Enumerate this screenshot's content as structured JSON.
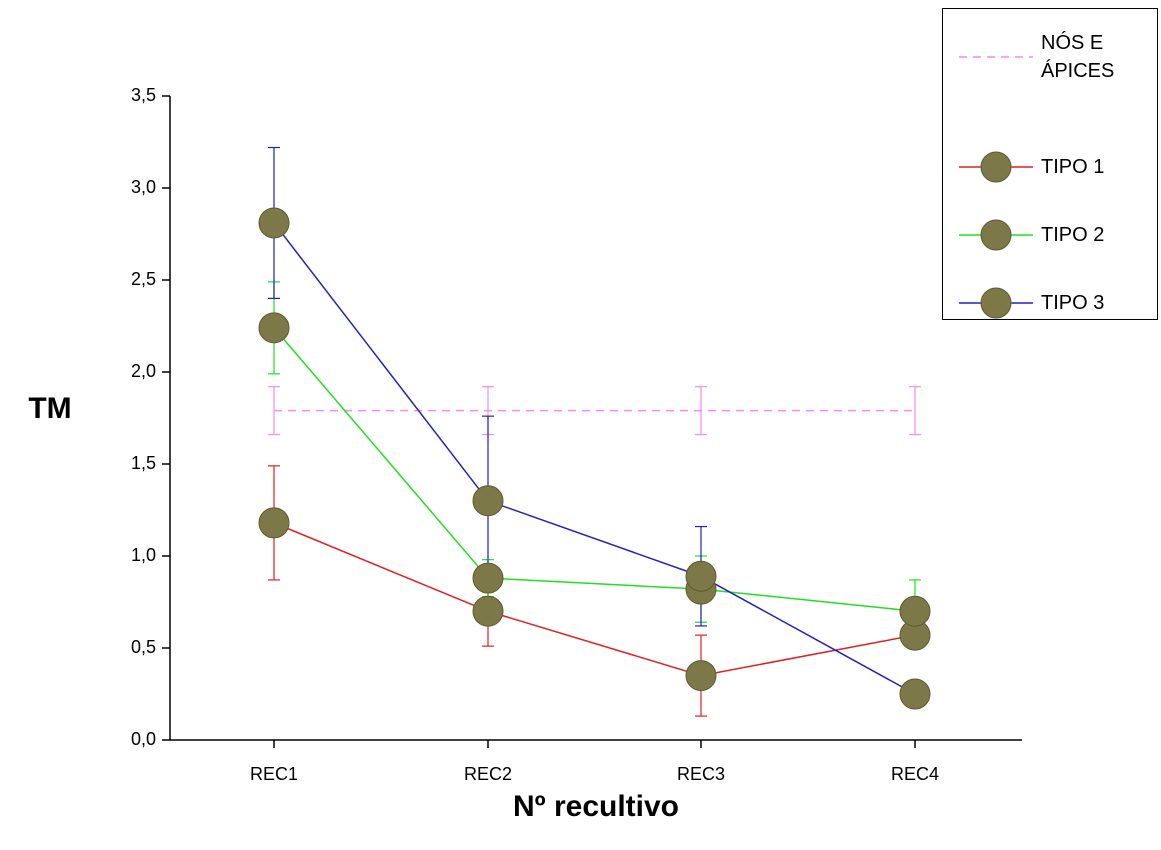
{
  "chart_data": {
    "type": "line",
    "x_label": "Nº recultivo",
    "y_label": "TM",
    "categories": [
      "REC1",
      "REC2",
      "REC3",
      "REC4"
    ],
    "ylim": [
      0,
      3.5
    ],
    "yticks": [
      {
        "value": 0,
        "label": "0,0"
      },
      {
        "value": 0.5,
        "label": "0,5"
      },
      {
        "value": 1,
        "label": "1,0"
      },
      {
        "value": 1.5,
        "label": "1,5"
      },
      {
        "value": 2,
        "label": "2,0"
      },
      {
        "value": 2.5,
        "label": "2,5"
      },
      {
        "value": 3,
        "label": "3,0"
      },
      {
        "value": 3.5,
        "label": "3,5"
      }
    ],
    "marker_color": "#7d7848",
    "series": [
      {
        "name": "NÓS E ÁPICES",
        "color": "#f08cf0",
        "line_style": "dashed",
        "markers": false,
        "values": [
          1.79,
          1.79,
          1.79,
          1.79
        ],
        "errors": [
          0.13,
          0.13,
          0.13,
          0.13
        ]
      },
      {
        "name": "TIPO 1",
        "color": "#e02020",
        "line_style": "solid",
        "markers": true,
        "values": [
          1.18,
          0.7,
          0.35,
          0.57
        ],
        "errors": [
          0.31,
          0.19,
          0.22,
          0
        ]
      },
      {
        "name": "TIPO 2",
        "color": "#20e020",
        "line_style": "solid",
        "markers": true,
        "values": [
          2.24,
          0.88,
          0.82,
          0.7
        ],
        "errors": [
          0.25,
          0.1,
          0.18,
          0.17
        ]
      },
      {
        "name": "TIPO 3",
        "color": "#2020c0",
        "line_style": "solid",
        "markers": true,
        "values": [
          2.81,
          1.3,
          0.89,
          0.25
        ],
        "errors": [
          0.41,
          0.46,
          0.27,
          0
        ]
      }
    ]
  }
}
